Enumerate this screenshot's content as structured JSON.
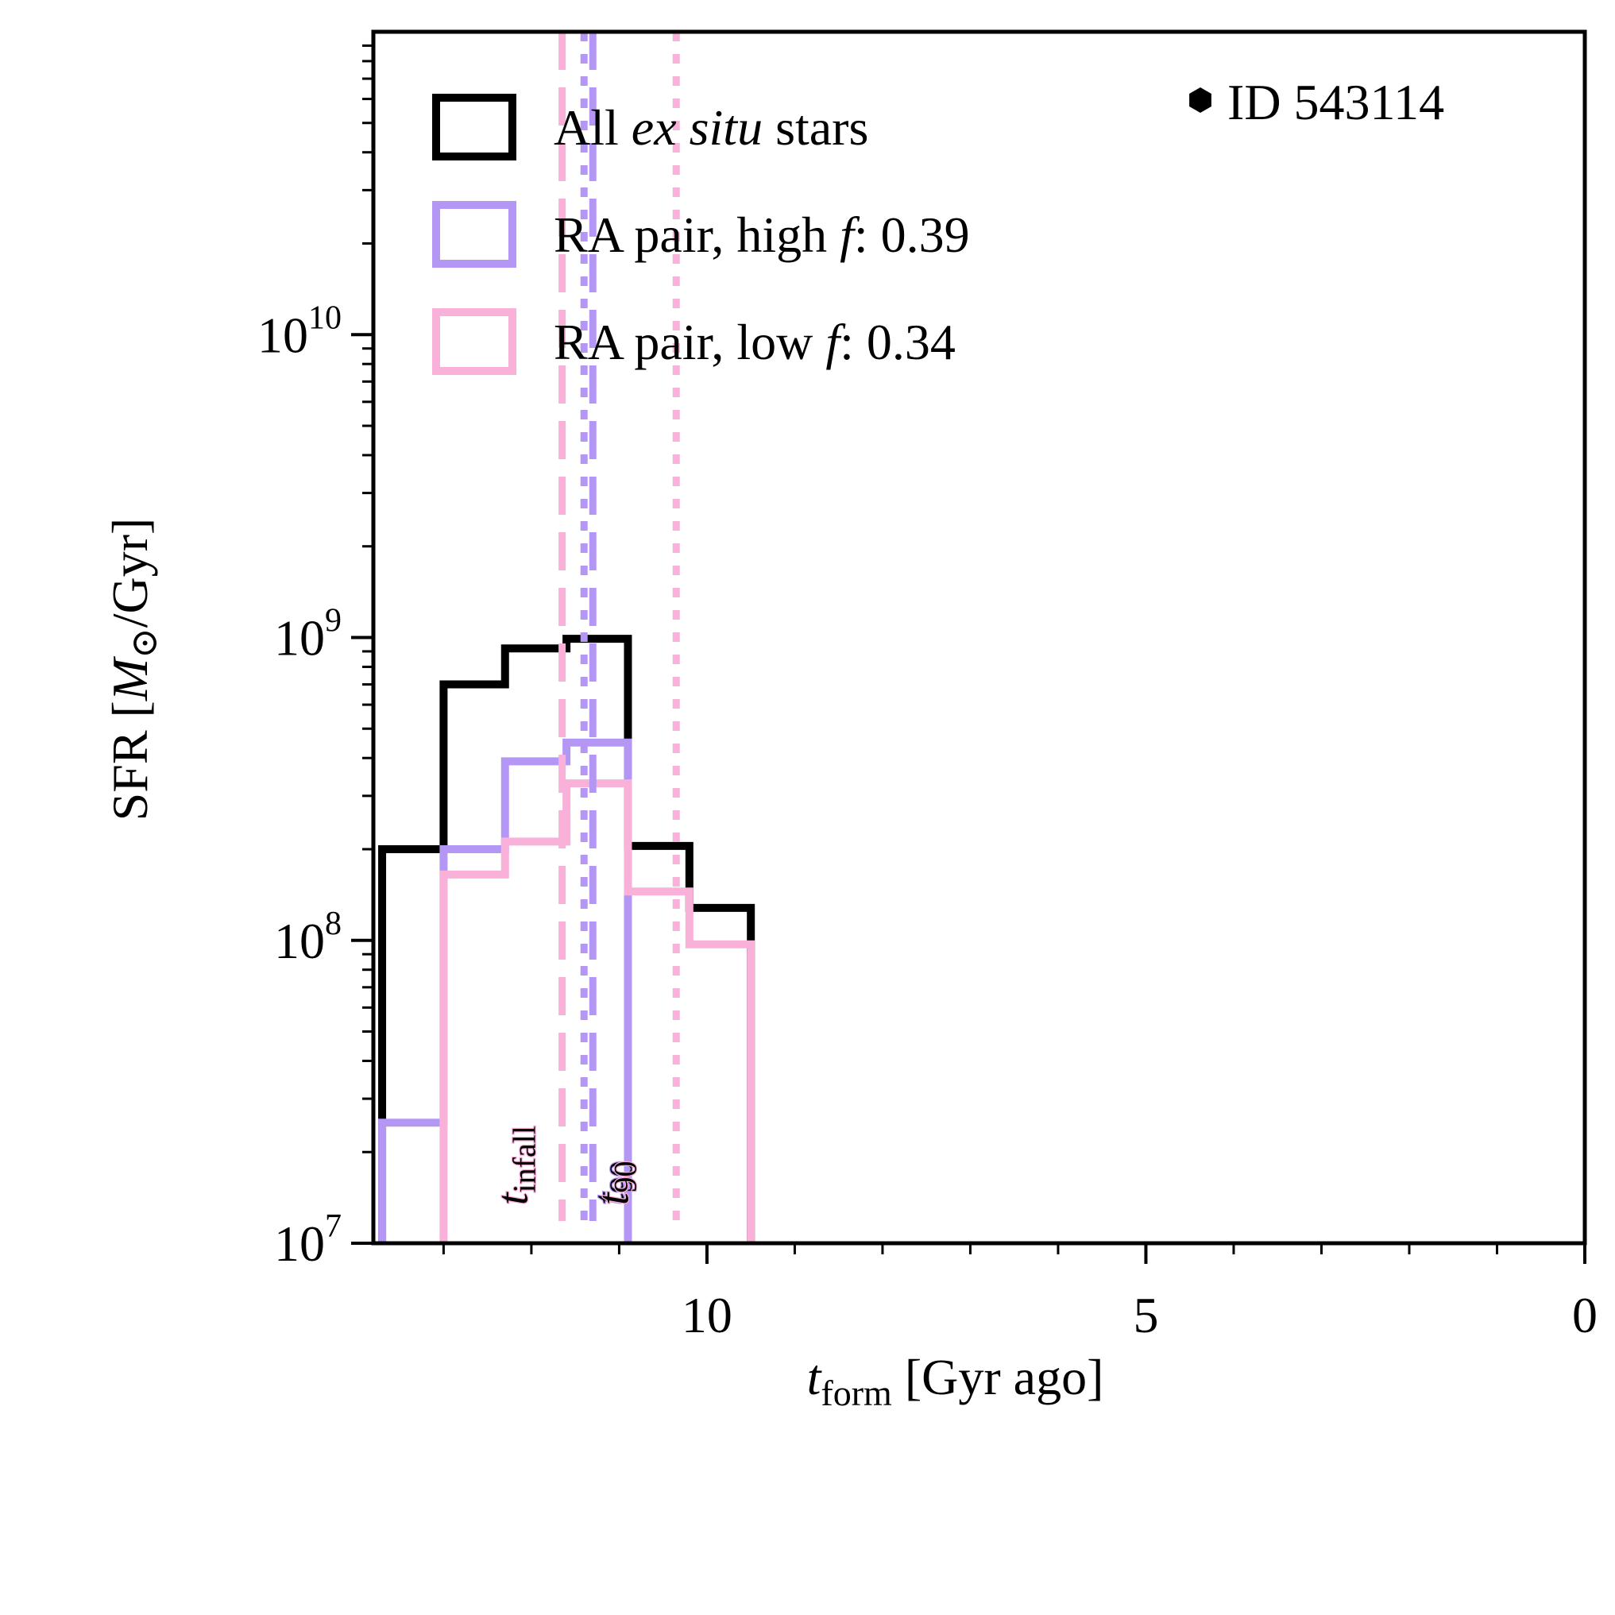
{
  "chart_data": {
    "type": "step-histogram",
    "xlabel": {
      "main": "t",
      "sub": "form",
      "rest": " [Gyr ago]"
    },
    "ylabel": {
      "pre": "SFR [",
      "italic": "M",
      "sym": "⊙",
      "post": "/Gyr]"
    },
    "x_reversed": true,
    "xlim": [
      13.8,
      0
    ],
    "ylim": [
      10000000,
      100000000000
    ],
    "yscale": "log",
    "xticks": [
      {
        "value": 10,
        "label": "10"
      },
      {
        "value": 5,
        "label": "5"
      },
      {
        "value": 0,
        "label": "0"
      }
    ],
    "yticks": [
      {
        "value": 10000000,
        "base": "10",
        "exp": "7"
      },
      {
        "value": 100000000,
        "base": "10",
        "exp": "8"
      },
      {
        "value": 1000000000,
        "base": "10",
        "exp": "9"
      },
      {
        "value": 10000000000,
        "base": "10",
        "exp": "10"
      }
    ],
    "annotation": {
      "marker": "hexagon",
      "text": "ID 543114",
      "location": "top-right"
    },
    "legend": {
      "location": "upper-left",
      "entries": [
        {
          "series": "all",
          "parts": [
            {
              "t": "All ",
              "i": false
            },
            {
              "t": "ex situ",
              "i": true
            },
            {
              "t": " stars",
              "i": false
            }
          ]
        },
        {
          "series": "high",
          "parts": [
            {
              "t": "RA pair, high ",
              "i": false
            },
            {
              "t": "f",
              "i": true
            },
            {
              "t": ": 0.39",
              "i": false
            }
          ]
        },
        {
          "series": "low",
          "parts": [
            {
              "t": "RA pair, low ",
              "i": false
            },
            {
              "t": "f",
              "i": true
            },
            {
              "t": ": 0.34",
              "i": false
            }
          ]
        }
      ]
    },
    "series": [
      {
        "name": "All ex situ stars",
        "key": "all",
        "color": "#000000",
        "edges": [
          13.7,
          13.0,
          12.3,
          11.6,
          10.9,
          10.2,
          9.5
        ],
        "values": [
          200000000,
          700000000,
          920000000,
          990000000,
          205000000,
          128000000
        ]
      },
      {
        "name": "RA pair, high f: 0.39",
        "key": "high",
        "color": "#b497f5",
        "edges": [
          13.7,
          13.0,
          12.3,
          11.6,
          10.9
        ],
        "values": [
          25000000,
          200000000,
          390000000,
          450000000
        ]
      },
      {
        "name": "RA pair, low f: 0.34",
        "key": "low",
        "color": "#f9b1da",
        "edges": [
          13.0,
          12.3,
          11.6,
          10.9,
          10.2,
          9.5
        ],
        "values": [
          165000000,
          212000000,
          330000000,
          145000000,
          97000000
        ]
      }
    ],
    "vlines": [
      {
        "series": "low",
        "x": 11.65,
        "style": "dashed",
        "color": "#f9b1da"
      },
      {
        "series": "high",
        "x": 11.4,
        "style": "dotted",
        "color": "#b497f5"
      },
      {
        "series": "high",
        "x": 11.3,
        "style": "dashed",
        "color": "#b497f5"
      },
      {
        "series": "low",
        "x": 10.35,
        "style": "dotted",
        "color": "#f9b1da"
      }
    ],
    "vline_labels": [
      {
        "base": "t",
        "sub": "infall",
        "x": 12.05,
        "color": "#f9b1da"
      },
      {
        "base": "t",
        "sub": "90",
        "x": 10.95,
        "color": "#b497f5"
      },
      {
        "base": "t",
        "sub": "90",
        "x": 10.9,
        "color": "#f9b1da"
      }
    ]
  }
}
